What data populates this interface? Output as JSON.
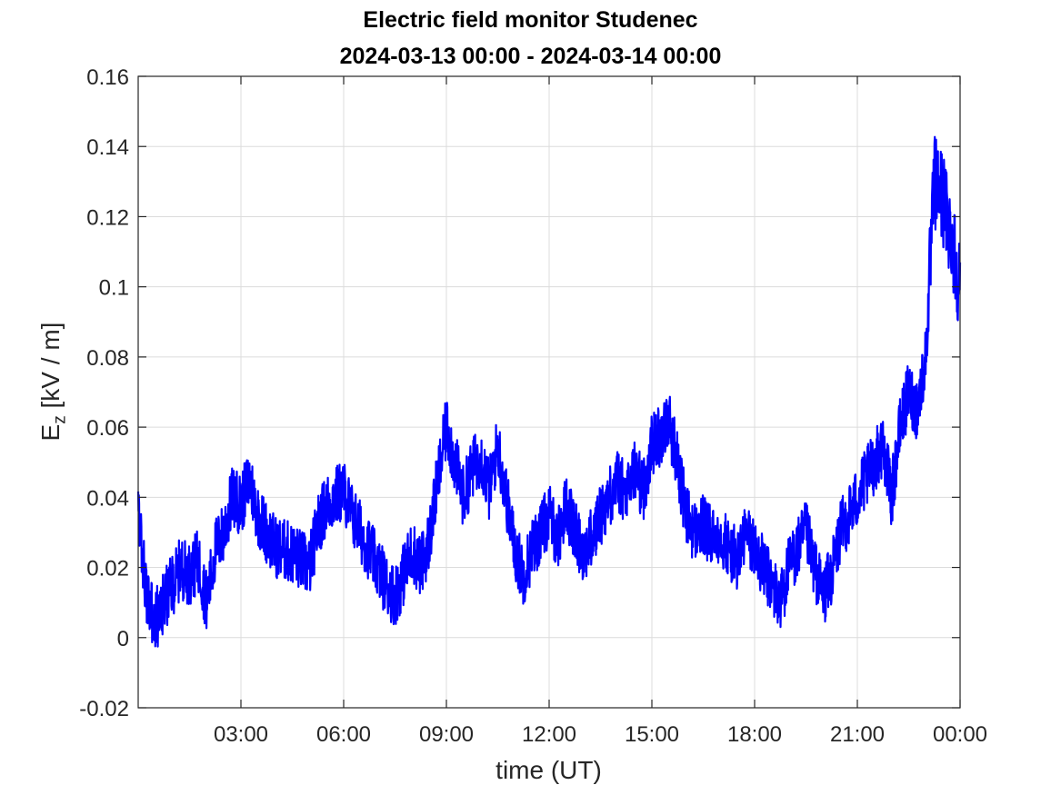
{
  "chart_data": {
    "type": "line",
    "title": "Electric field monitor Studenec",
    "subtitle": "2024-03-13 00:00 - 2024-03-14 00:00",
    "xlabel": "time (UT)",
    "ylabel": {
      "main": "E",
      "sub": "z",
      "unit": "[kV / m]"
    },
    "xlim": [
      "2024-03-13 00:00",
      "2024-03-14 00:00"
    ],
    "x_tick_labels": [
      "03:00",
      "06:00",
      "09:00",
      "12:00",
      "15:00",
      "18:00",
      "21:00",
      "00:00"
    ],
    "x_tick_hours": [
      3,
      6,
      9,
      12,
      15,
      18,
      21,
      24
    ],
    "ylim": [
      -0.02,
      0.16
    ],
    "y_ticks": [
      -0.02,
      0,
      0.02,
      0.04,
      0.06,
      0.08,
      0.1,
      0.12,
      0.14,
      0.16
    ],
    "y_tick_labels": [
      "-0.02",
      "0",
      "0.02",
      "0.04",
      "0.06",
      "0.08",
      "0.1",
      "0.12",
      "0.14",
      "0.16"
    ],
    "grid": true,
    "series": [
      {
        "color": "#0000ff",
        "x_hours": [
          0,
          0.25,
          0.5,
          0.75,
          1.0,
          1.25,
          1.5,
          1.75,
          2.0,
          2.25,
          2.5,
          2.75,
          3.0,
          3.25,
          3.5,
          3.75,
          4.0,
          4.25,
          4.5,
          4.75,
          5.0,
          5.25,
          5.5,
          5.75,
          6.0,
          6.25,
          6.5,
          6.75,
          7.0,
          7.25,
          7.5,
          7.75,
          8.0,
          8.25,
          8.5,
          8.75,
          9.0,
          9.25,
          9.5,
          9.75,
          10.0,
          10.25,
          10.5,
          10.75,
          11.0,
          11.25,
          11.5,
          11.75,
          12.0,
          12.25,
          12.5,
          12.75,
          13.0,
          13.25,
          13.5,
          13.75,
          14.0,
          14.25,
          14.5,
          14.75,
          15.0,
          15.25,
          15.5,
          15.75,
          16.0,
          16.25,
          16.5,
          16.75,
          17.0,
          17.25,
          17.5,
          17.75,
          18.0,
          18.25,
          18.5,
          18.75,
          19.0,
          19.25,
          19.5,
          19.75,
          20.0,
          20.25,
          20.5,
          20.75,
          21.0,
          21.25,
          21.5,
          21.75,
          22.0,
          22.25,
          22.5,
          22.75,
          23.0,
          23.25,
          23.5,
          23.75,
          24.0
        ],
        "values": [
          0.035,
          0.012,
          0.005,
          0.01,
          0.015,
          0.02,
          0.018,
          0.022,
          0.01,
          0.025,
          0.03,
          0.04,
          0.038,
          0.045,
          0.035,
          0.03,
          0.026,
          0.025,
          0.024,
          0.022,
          0.02,
          0.032,
          0.038,
          0.04,
          0.042,
          0.035,
          0.03,
          0.025,
          0.02,
          0.015,
          0.012,
          0.018,
          0.025,
          0.02,
          0.028,
          0.045,
          0.06,
          0.05,
          0.04,
          0.048,
          0.052,
          0.042,
          0.055,
          0.04,
          0.025,
          0.018,
          0.025,
          0.03,
          0.035,
          0.028,
          0.038,
          0.03,
          0.025,
          0.028,
          0.035,
          0.04,
          0.045,
          0.04,
          0.048,
          0.042,
          0.055,
          0.058,
          0.062,
          0.05,
          0.035,
          0.03,
          0.032,
          0.028,
          0.03,
          0.025,
          0.022,
          0.03,
          0.025,
          0.02,
          0.015,
          0.01,
          0.02,
          0.025,
          0.03,
          0.02,
          0.012,
          0.018,
          0.03,
          0.035,
          0.04,
          0.045,
          0.05,
          0.055,
          0.04,
          0.06,
          0.07,
          0.065,
          0.08,
          0.13,
          0.125,
          0.115,
          0.1
        ]
      }
    ]
  }
}
